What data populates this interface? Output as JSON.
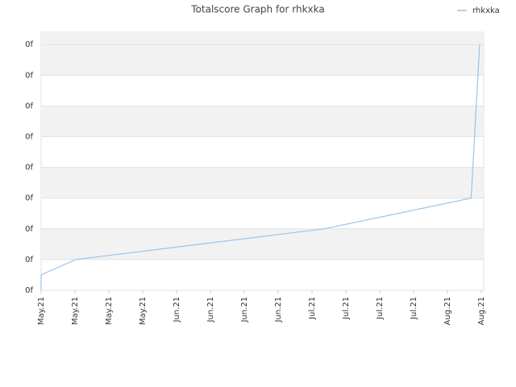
{
  "chart_data": {
    "type": "line",
    "title": "Totalscore Graph for rhkxka",
    "x": [
      0,
      0,
      1.02,
      8.36,
      12.7,
      12.95
    ],
    "series": [
      {
        "name": "rhkxka",
        "color": "#99c4ea",
        "values": [
          0,
          0.5,
          1,
          2,
          3,
          8
        ]
      }
    ],
    "xlim": [
      0,
      13
    ],
    "xticks": [
      {
        "value": 0,
        "label": "May.21"
      },
      {
        "value": 1,
        "label": "May.21"
      },
      {
        "value": 2,
        "label": "May.21"
      },
      {
        "value": 3,
        "label": "May.21"
      },
      {
        "value": 4,
        "label": "Jun.21"
      },
      {
        "value": 5,
        "label": "Jun.21"
      },
      {
        "value": 6,
        "label": "Jun.21"
      },
      {
        "value": 7,
        "label": "Jun.21"
      },
      {
        "value": 8,
        "label": "Jul.21"
      },
      {
        "value": 9,
        "label": "Jul.21"
      },
      {
        "value": 10,
        "label": "Jul.21"
      },
      {
        "value": 11,
        "label": "Jul.21"
      },
      {
        "value": 12,
        "label": "Aug.21"
      },
      {
        "value": 13,
        "label": "Aug.21"
      }
    ],
    "ylim": [
      0,
      8.4
    ],
    "yticks": [
      {
        "value": 0,
        "label": "0f"
      },
      {
        "value": 1,
        "label": "0f"
      },
      {
        "value": 2,
        "label": "0f"
      },
      {
        "value": 3,
        "label": "0f"
      },
      {
        "value": 4,
        "label": "0f"
      },
      {
        "value": 5,
        "label": "0f"
      },
      {
        "value": 6,
        "label": "0f"
      },
      {
        "value": 7,
        "label": "0f"
      },
      {
        "value": 8,
        "label": "0f"
      }
    ],
    "grid": true,
    "legend": "top-right"
  }
}
